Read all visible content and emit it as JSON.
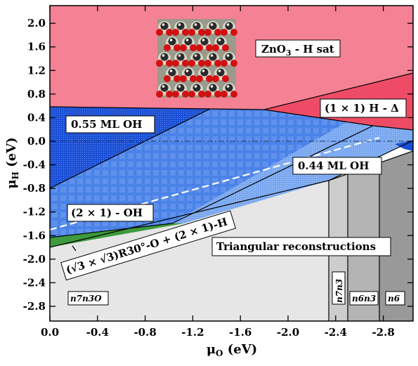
{
  "diagram": {
    "type": "surface-phase-diagram",
    "x_axis": {
      "label_main": "μ",
      "label_sub": "O",
      "label_unit": " (eV)",
      "range": [
        0.0,
        -3.05
      ],
      "ticks": [
        "0.0",
        "-0.4",
        "-0.8",
        "-1.2",
        "-1.6",
        "-2.0",
        "-2.4",
        "-2.8"
      ],
      "tick_values": [
        0.0,
        -0.4,
        -0.8,
        -1.2,
        -1.6,
        -2.0,
        -2.4,
        -2.8
      ]
    },
    "y_axis": {
      "label_main": "μ",
      "label_sub": "H",
      "label_unit": " (eV)",
      "range": [
        -3.05,
        2.3
      ],
      "ticks": [
        "2.0",
        "1.6",
        "1.2",
        "0.8",
        "0.4",
        "0.0",
        "-0.4",
        "-0.8",
        "-1.2",
        "-1.6",
        "-2.0",
        "-2.4",
        "-2.8"
      ],
      "tick_values": [
        2.0,
        1.6,
        1.2,
        0.8,
        0.4,
        0.0,
        -0.4,
        -0.8,
        -1.2,
        -1.6,
        -2.0,
        -2.4,
        -2.8
      ]
    },
    "labels": {
      "zno3": {
        "main": "ZnO",
        "sub": "3",
        "rest": " - H sat"
      },
      "h_delta": "(1 × 1) H - Δ",
      "ml055": "0.55 ML OH",
      "ml044": "0.44 ML OH",
      "oh2x1": "(2 × 1) - OH",
      "r30": "(√3 × √3)R30°-O + (2 × 1)-H",
      "triangular": "Triangular reconstructions",
      "n7n3o": "n7n3O",
      "n7n3": "n7n3",
      "n6n3": "n6n3",
      "n6": "n6"
    },
    "colors": {
      "zno3_region": "#f48294",
      "h_delta_region": "#ee4c66",
      "ml055_region": "#1a4fd6",
      "ml044_region": "#7aa8f0",
      "oh2x1_region": "#4a82e8",
      "r30_region": "#3d9a3d",
      "triangular_region": "#e6e6e6",
      "n6n3_region": "#b4b4b4",
      "n6_region": "#999999",
      "n7n3_region": "#cdcdcd"
    }
  }
}
